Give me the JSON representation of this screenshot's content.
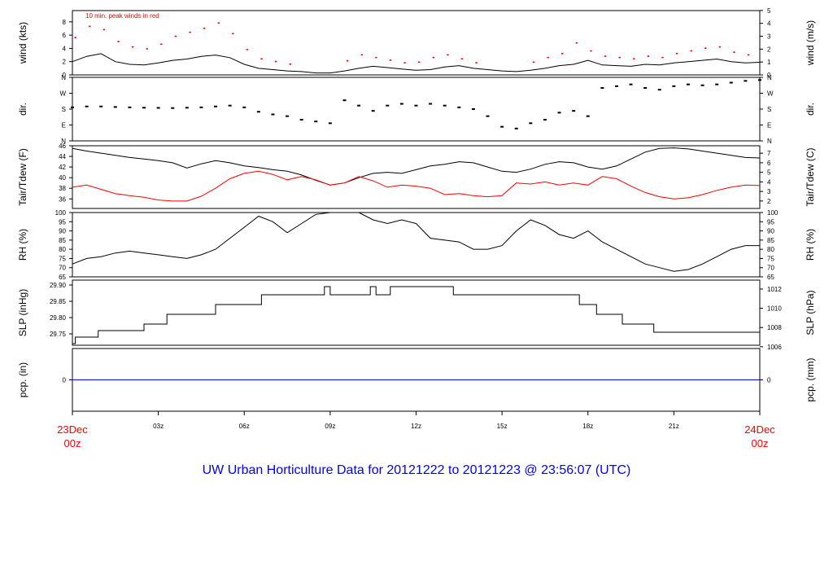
{
  "title": "UW Urban Horticulture Data for 20121222  to  20121223 @ 23:56:07  (UTC)",
  "time_axis": {
    "start_label": [
      "23Dec",
      "00z"
    ],
    "end_label": [
      "24Dec",
      "00z"
    ],
    "ticks": [
      {
        "hour": 3,
        "label": "03z"
      },
      {
        "hour": 6,
        "label": "06z"
      },
      {
        "hour": 9,
        "label": "09z"
      },
      {
        "hour": 12,
        "label": "12z"
      },
      {
        "hour": 15,
        "label": "15z"
      },
      {
        "hour": 18,
        "label": "18z"
      },
      {
        "hour": 21,
        "label": "21z"
      }
    ],
    "range_hours": [
      0,
      24
    ]
  },
  "colors": {
    "primary": "#000000",
    "secondary": "#ff0000",
    "title": "#0000ff",
    "precip": "#0000ff",
    "time_labels": "#ff0000"
  },
  "chart_data": [
    {
      "type": "line",
      "panel": "wind",
      "ylabel": "wind (kts)",
      "ylabel_right": "wind (m/s)",
      "annotation": "10 min. peak winds in red",
      "ylim": [
        0,
        9.7
      ],
      "left_ticks": [
        {
          "v": 0,
          "l": "0"
        },
        {
          "v": 2,
          "l": "2"
        },
        {
          "v": 4,
          "l": "4"
        },
        {
          "v": 6,
          "l": "6"
        },
        {
          "v": 8,
          "l": "8"
        }
      ],
      "right_ticks": [
        {
          "v": 0,
          "l": "0"
        },
        {
          "v": 1.944,
          "l": "1"
        },
        {
          "v": 3.888,
          "l": "2"
        },
        {
          "v": 5.832,
          "l": "3"
        },
        {
          "v": 7.776,
          "l": "4"
        },
        {
          "v": 9.72,
          "l": "5"
        }
      ],
      "series": [
        {
          "role": "speed",
          "color": "#000000",
          "x": [
            0,
            0.5,
            1,
            1.5,
            2,
            2.5,
            3,
            3.5,
            4,
            4.5,
            5,
            5.5,
            6,
            6.5,
            7,
            7.5,
            8,
            8.5,
            9,
            9.5,
            10,
            10.5,
            11,
            11.5,
            12,
            12.5,
            13,
            13.5,
            14,
            14.5,
            15,
            15.5,
            16,
            16.5,
            17,
            17.5,
            18,
            18.5,
            19,
            19.5,
            20,
            20.5,
            21,
            21.5,
            22,
            22.5,
            23,
            23.5,
            24
          ],
          "y": [
            2.0,
            2.8,
            3.2,
            2.0,
            1.6,
            1.5,
            1.8,
            2.2,
            2.4,
            2.8,
            3.0,
            2.6,
            1.6,
            1.0,
            0.8,
            0.6,
            0.5,
            0.3,
            0.3,
            0.6,
            1.0,
            1.3,
            1.1,
            0.9,
            0.7,
            0.8,
            1.2,
            1.4,
            1.0,
            0.8,
            0.6,
            0.5,
            0.7,
            1.0,
            1.4,
            1.6,
            2.2,
            1.5,
            1.4,
            1.3,
            1.6,
            1.5,
            1.8,
            2.0,
            2.2,
            2.4,
            2.0,
            1.8,
            1.9
          ]
        },
        {
          "role": "peak",
          "color": "#ff0000",
          "x": [
            0.1,
            0.6,
            1.1,
            1.6,
            2.1,
            2.6,
            3.1,
            3.6,
            4.1,
            4.6,
            5.1,
            5.6,
            6.1,
            6.6,
            7.1,
            7.6,
            9.6,
            10.1,
            10.6,
            11.1,
            11.6,
            12.1,
            12.6,
            13.1,
            13.6,
            14.1,
            16.1,
            16.6,
            17.1,
            17.6,
            18.1,
            18.6,
            19.1,
            19.6,
            20.1,
            20.6,
            21.1,
            21.6,
            22.1,
            22.6,
            23.1,
            23.6
          ],
          "y": [
            5.6,
            7.3,
            6.8,
            5.0,
            4.2,
            3.9,
            4.6,
            5.8,
            6.4,
            7.0,
            7.8,
            6.2,
            3.8,
            2.4,
            2.0,
            1.6,
            2.1,
            3.0,
            2.6,
            2.2,
            1.8,
            1.9,
            2.6,
            3.0,
            2.4,
            1.8,
            1.9,
            2.6,
            3.2,
            4.8,
            3.6,
            2.8,
            2.6,
            2.4,
            2.8,
            2.6,
            3.2,
            3.6,
            4.0,
            4.2,
            3.4,
            3.0
          ]
        }
      ]
    },
    {
      "type": "scatter",
      "panel": "direction",
      "ylabel": "dir.",
      "ylabel_right": "dir.",
      "ylim": [
        0,
        360
      ],
      "left_ticks": [
        {
          "v": 0,
          "l": "N"
        },
        {
          "v": 90,
          "l": "E"
        },
        {
          "v": 180,
          "l": "S"
        },
        {
          "v": 270,
          "l": "W"
        },
        {
          "v": 360,
          "l": "N"
        }
      ],
      "right_ticks": [
        {
          "v": 0,
          "l": "N"
        },
        {
          "v": 90,
          "l": "E"
        },
        {
          "v": 180,
          "l": "S"
        },
        {
          "v": 270,
          "l": "W"
        },
        {
          "v": 360,
          "l": "N"
        }
      ],
      "x": [
        0,
        0.5,
        1,
        1.5,
        2,
        2.5,
        3,
        3.5,
        4,
        4.5,
        5,
        5.5,
        6,
        6.5,
        7,
        7.5,
        8,
        8.5,
        9,
        9.5,
        10,
        10.5,
        11,
        11.5,
        12,
        12.5,
        13,
        13.5,
        14,
        14.5,
        15,
        15.5,
        16,
        16.5,
        17,
        17.5,
        18,
        18.5,
        19,
        19.5,
        20,
        20.5,
        21,
        21.5,
        22,
        22.5,
        23,
        23.5,
        24
      ],
      "y": [
        190,
        195,
        195,
        192,
        190,
        188,
        187,
        186,
        188,
        190,
        195,
        200,
        190,
        165,
        150,
        140,
        120,
        110,
        100,
        230,
        200,
        170,
        200,
        210,
        200,
        210,
        200,
        190,
        180,
        140,
        80,
        70,
        100,
        120,
        160,
        170,
        140,
        300,
        310,
        320,
        300,
        290,
        310,
        320,
        315,
        320,
        330,
        340,
        345
      ]
    },
    {
      "type": "line",
      "panel": "temperature",
      "ylabel": "Tair/Tdew (F)",
      "ylabel_right": "Tair/Tdew (C)",
      "ylim": [
        34.2,
        46
      ],
      "left_ticks": [
        {
          "v": 36,
          "l": "36"
        },
        {
          "v": 38,
          "l": "38"
        },
        {
          "v": 40,
          "l": "40"
        },
        {
          "v": 42,
          "l": "42"
        },
        {
          "v": 44,
          "l": "44"
        },
        {
          "v": 46,
          "l": "46"
        }
      ],
      "right_ticks": [
        {
          "v": 35.6,
          "l": "2"
        },
        {
          "v": 37.4,
          "l": "3"
        },
        {
          "v": 39.2,
          "l": "4"
        },
        {
          "v": 41.0,
          "l": "5"
        },
        {
          "v": 42.8,
          "l": "6"
        },
        {
          "v": 44.6,
          "l": "7"
        }
      ],
      "series": [
        {
          "role": "Tair",
          "color": "#000000",
          "x": [
            0,
            0.5,
            1,
            1.5,
            2,
            2.5,
            3,
            3.5,
            4,
            4.5,
            5,
            5.5,
            6,
            6.5,
            7,
            7.5,
            8,
            8.5,
            9,
            9.5,
            10,
            10.5,
            11,
            11.5,
            12,
            12.5,
            13,
            13.5,
            14,
            14.5,
            15,
            15.5,
            16,
            16.5,
            17,
            17.5,
            18,
            18.5,
            19,
            19.5,
            20,
            20.5,
            21,
            21.5,
            22,
            22.5,
            23,
            23.5,
            24
          ],
          "y": [
            45.5,
            45.0,
            44.6,
            44.2,
            43.8,
            43.5,
            43.2,
            42.8,
            41.8,
            42.6,
            43.2,
            42.8,
            42.2,
            41.9,
            41.5,
            41.2,
            40.5,
            39.5,
            38.6,
            39.0,
            40.0,
            40.8,
            41.0,
            40.8,
            41.5,
            42.2,
            42.5,
            43.0,
            42.8,
            42.0,
            41.2,
            41.0,
            41.6,
            42.5,
            43.0,
            42.8,
            42.0,
            41.6,
            42.2,
            43.5,
            44.8,
            45.5,
            45.6,
            45.4,
            45.0,
            44.6,
            44.2,
            43.8,
            43.7
          ]
        },
        {
          "role": "Tdew",
          "color": "#ff0000",
          "x": [
            0,
            0.5,
            1,
            1.5,
            2,
            2.5,
            3,
            3.5,
            4,
            4.5,
            5,
            5.5,
            6,
            6.5,
            7,
            7.5,
            8,
            8.5,
            9,
            9.5,
            10,
            10.5,
            11,
            11.5,
            12,
            12.5,
            13,
            13.5,
            14,
            14.5,
            15,
            15.5,
            16,
            16.5,
            17,
            17.5,
            18,
            18.5,
            19,
            19.5,
            20,
            20.5,
            21,
            21.5,
            22,
            22.5,
            23,
            23.5,
            24
          ],
          "y": [
            38.2,
            38.6,
            37.8,
            37.0,
            36.6,
            36.3,
            35.8,
            35.6,
            35.6,
            36.5,
            38.0,
            39.8,
            40.8,
            41.2,
            40.6,
            39.6,
            40.2,
            39.6,
            38.6,
            39.0,
            40.2,
            39.4,
            38.2,
            38.6,
            38.4,
            38.0,
            36.8,
            37.0,
            36.6,
            36.4,
            36.6,
            39.0,
            38.8,
            39.2,
            38.6,
            39.0,
            38.6,
            40.2,
            39.8,
            38.4,
            37.2,
            36.4,
            36.0,
            36.2,
            36.8,
            37.6,
            38.2,
            38.6,
            38.5
          ]
        }
      ]
    },
    {
      "type": "line",
      "panel": "humidity",
      "ylabel": "RH (%)",
      "ylabel_right": "RH (%)",
      "ylim": [
        65,
        100
      ],
      "left_ticks": [
        {
          "v": 65,
          "l": "65"
        },
        {
          "v": 70,
          "l": "70"
        },
        {
          "v": 75,
          "l": "75"
        },
        {
          "v": 80,
          "l": "80"
        },
        {
          "v": 85,
          "l": "85"
        },
        {
          "v": 90,
          "l": "90"
        },
        {
          "v": 95,
          "l": "95"
        },
        {
          "v": 100,
          "l": "100"
        }
      ],
      "right_ticks": [
        {
          "v": 65,
          "l": "65"
        },
        {
          "v": 70,
          "l": "70"
        },
        {
          "v": 75,
          "l": "75"
        },
        {
          "v": 80,
          "l": "80"
        },
        {
          "v": 85,
          "l": "85"
        },
        {
          "v": 90,
          "l": "90"
        },
        {
          "v": 95,
          "l": "95"
        },
        {
          "v": 100,
          "l": "100"
        }
      ],
      "x": [
        0,
        0.5,
        1,
        1.5,
        2,
        2.5,
        3,
        3.5,
        4,
        4.5,
        5,
        5.5,
        6,
        6.5,
        7,
        7.5,
        8,
        8.5,
        9,
        9.5,
        10,
        10.5,
        11,
        11.5,
        12,
        12.5,
        13,
        13.5,
        14,
        14.5,
        15,
        15.5,
        16,
        16.5,
        17,
        17.5,
        18,
        18.5,
        19,
        19.5,
        20,
        20.5,
        21,
        21.5,
        22,
        22.5,
        23,
        23.5,
        24
      ],
      "y": [
        72,
        75,
        76,
        78,
        79,
        78,
        77,
        76,
        75,
        77,
        80,
        86,
        92,
        98,
        95,
        89,
        94,
        99,
        100,
        100,
        100,
        96,
        94,
        96,
        94,
        86,
        85,
        84,
        80,
        80,
        82,
        90,
        96,
        93,
        88,
        86,
        90,
        84,
        80,
        76,
        72,
        70,
        68,
        69,
        72,
        76,
        80,
        82,
        82
      ]
    },
    {
      "type": "line",
      "panel": "pressure",
      "ylabel": "SLP (inHg)",
      "ylabel_right": "SLP (hPa)",
      "ylim": [
        29.715,
        29.915
      ],
      "left_ticks": [
        {
          "v": 29.75,
          "l": "29.75"
        },
        {
          "v": 29.8,
          "l": "29.80"
        },
        {
          "v": 29.85,
          "l": "29.85"
        },
        {
          "v": 29.9,
          "l": "29.90"
        }
      ],
      "right_ticks": [
        {
          "v": 29.7105,
          "l": "1006"
        },
        {
          "v": 29.7695,
          "l": "1008"
        },
        {
          "v": 29.8286,
          "l": "1010"
        },
        {
          "v": 29.8876,
          "l": "1012"
        }
      ],
      "x": [
        0,
        0.1,
        0.1,
        0.9,
        0.9,
        2.5,
        2.5,
        3.3,
        3.3,
        5.0,
        5.0,
        6.6,
        6.6,
        8.8,
        8.8,
        9.0,
        9.0,
        10.4,
        10.4,
        10.6,
        10.6,
        11.1,
        11.1,
        13.3,
        13.3,
        17.7,
        17.7,
        18.3,
        18.3,
        19.2,
        19.2,
        20.3,
        20.3,
        24
      ],
      "y": [
        29.72,
        29.72,
        29.74,
        29.74,
        29.76,
        29.76,
        29.78,
        29.78,
        29.81,
        29.81,
        29.84,
        29.84,
        29.87,
        29.87,
        29.895,
        29.895,
        29.87,
        29.87,
        29.895,
        29.895,
        29.87,
        29.87,
        29.895,
        29.895,
        29.87,
        29.87,
        29.84,
        29.84,
        29.81,
        29.81,
        29.78,
        29.78,
        29.755,
        29.755
      ]
    },
    {
      "type": "line",
      "panel": "precipitation",
      "ylabel": "pcp. (in)",
      "ylabel_right": "pcp. (mm)",
      "ylim": [
        -1,
        1
      ],
      "left_ticks": [
        {
          "v": 0,
          "l": "0"
        }
      ],
      "right_ticks": [
        {
          "v": 0,
          "l": "0"
        }
      ],
      "x": [
        0,
        24
      ],
      "y": [
        0,
        0
      ]
    }
  ]
}
